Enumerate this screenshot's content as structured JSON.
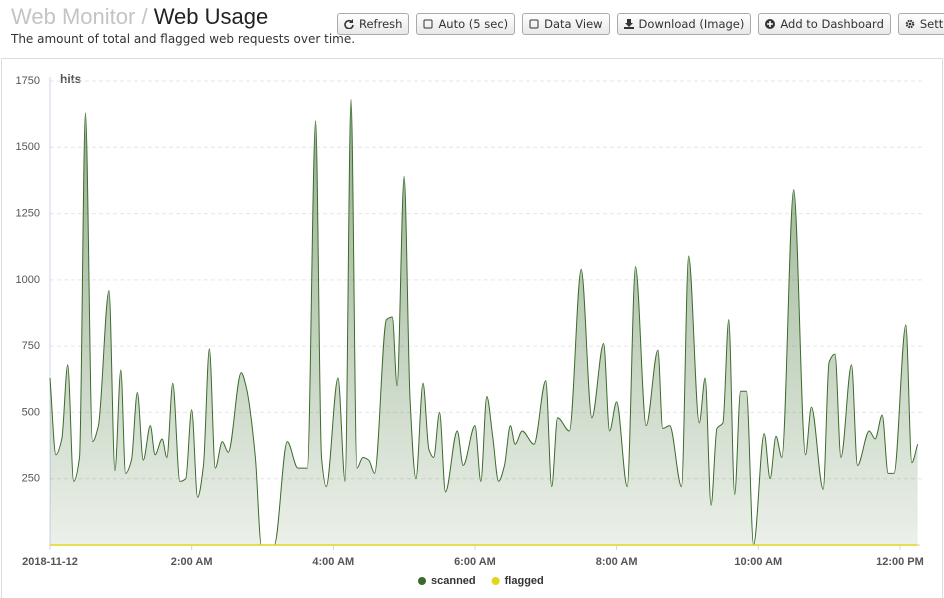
{
  "header": {
    "breadcrumb": "Web Monitor",
    "separator": "/",
    "title": "Web Usage",
    "subtitle": "The amount of total and flagged web requests over time."
  },
  "toolbar": {
    "buttons": [
      "Refresh",
      "Auto (5 sec)",
      "Data View",
      "Download (Image)",
      "Add to Dashboard",
      "Settings"
    ]
  },
  "chart_data": {
    "type": "area",
    "y_label": "hits",
    "x": [
      0,
      5,
      10,
      15,
      20,
      25,
      30,
      36,
      41,
      50,
      55,
      60,
      64,
      69,
      74,
      79,
      85,
      89,
      95,
      99,
      104,
      110,
      115,
      120,
      125,
      130,
      135,
      140,
      146,
      151,
      162,
      166,
      174,
      179,
      190,
      201,
      210,
      218,
      225,
      230,
      234,
      244,
      250,
      255,
      260,
      265,
      270,
      275,
      285,
      290,
      294,
      300,
      305,
      310,
      316,
      321,
      325,
      330,
      335,
      345,
      350,
      360,
      365,
      370,
      375,
      380,
      385,
      390,
      394,
      400,
      410,
      420,
      425,
      430,
      440,
      450,
      459,
      469,
      474,
      480,
      489,
      496,
      505,
      515,
      519,
      525,
      535,
      541,
      550,
      555,
      560,
      565,
      570,
      575,
      580,
      585,
      590,
      596,
      605,
      610,
      615,
      620,
      630,
      640,
      645,
      655,
      660,
      665,
      670,
      679,
      684,
      694,
      699,
      705,
      710,
      715,
      725,
      730,
      735
    ],
    "series": [
      {
        "name": "scanned",
        "color": "#3b6b2c",
        "values": [
          630,
          340,
          400,
          680,
          240,
          330,
          1630,
          390,
          450,
          960,
          280,
          660,
          270,
          320,
          575,
          320,
          450,
          340,
          400,
          330,
          610,
          240,
          250,
          510,
          180,
          300,
          740,
          290,
          390,
          350,
          650,
          600,
          330,
          0,
          0,
          390,
          290,
          290,
          1600,
          330,
          220,
          630,
          240,
          1680,
          290,
          330,
          320,
          270,
          850,
          860,
          600,
          1390,
          550,
          250,
          610,
          360,
          330,
          500,
          200,
          430,
          300,
          450,
          240,
          560,
          410,
          240,
          300,
          450,
          380,
          430,
          380,
          620,
          220,
          480,
          430,
          1040,
          480,
          760,
          430,
          540,
          220,
          1050,
          450,
          735,
          440,
          450,
          220,
          1090,
          460,
          630,
          150,
          440,
          460,
          850,
          190,
          580,
          580,
          0,
          420,
          250,
          410,
          330,
          1340,
          340,
          520,
          210,
          690,
          720,
          330,
          680,
          300,
          430,
          400,
          490,
          270,
          270,
          830,
          310,
          380
        ]
      },
      {
        "name": "flagged",
        "color": "#e3d51b",
        "values": [
          0,
          0,
          0,
          0,
          0,
          0,
          0,
          0,
          0,
          0,
          0,
          0,
          0,
          0,
          0,
          0,
          0,
          0,
          0,
          0,
          0,
          0,
          0,
          0,
          0,
          0,
          0,
          0,
          0,
          0,
          0,
          0,
          0,
          0,
          0,
          0,
          0,
          0,
          0,
          0,
          0,
          0,
          0,
          0,
          0,
          0,
          0,
          0,
          0,
          0,
          0,
          0,
          0,
          0,
          0,
          0,
          0,
          0,
          0,
          0,
          0,
          0,
          0,
          0,
          0,
          0,
          0,
          0,
          0,
          0,
          0,
          0,
          0,
          0,
          0,
          0,
          0,
          0,
          0,
          0,
          0,
          0,
          0,
          0,
          0,
          0,
          0,
          0,
          0,
          0,
          0,
          0,
          0,
          0,
          0,
          0,
          0,
          0,
          0,
          0,
          0,
          0,
          0,
          0,
          0,
          0,
          0,
          0,
          0,
          0,
          0,
          0,
          0,
          0,
          0,
          0,
          0,
          0,
          0
        ]
      }
    ],
    "xlim": [
      0,
      737
    ],
    "xticks": [
      {
        "value": 0,
        "label": "2018-11-12"
      },
      {
        "value": 120,
        "label": "2:00 AM"
      },
      {
        "value": 240,
        "label": "4:00 AM"
      },
      {
        "value": 360,
        "label": "6:00 AM"
      },
      {
        "value": 480,
        "label": "8:00 AM"
      },
      {
        "value": 600,
        "label": "10:00 AM"
      },
      {
        "value": 720,
        "label": "12:00 PM"
      }
    ],
    "ylim": [
      0,
      1750
    ],
    "yticks": [
      250,
      500,
      750,
      1000,
      1250,
      1500,
      1750
    ],
    "grid": true,
    "legend": "bottom"
  }
}
